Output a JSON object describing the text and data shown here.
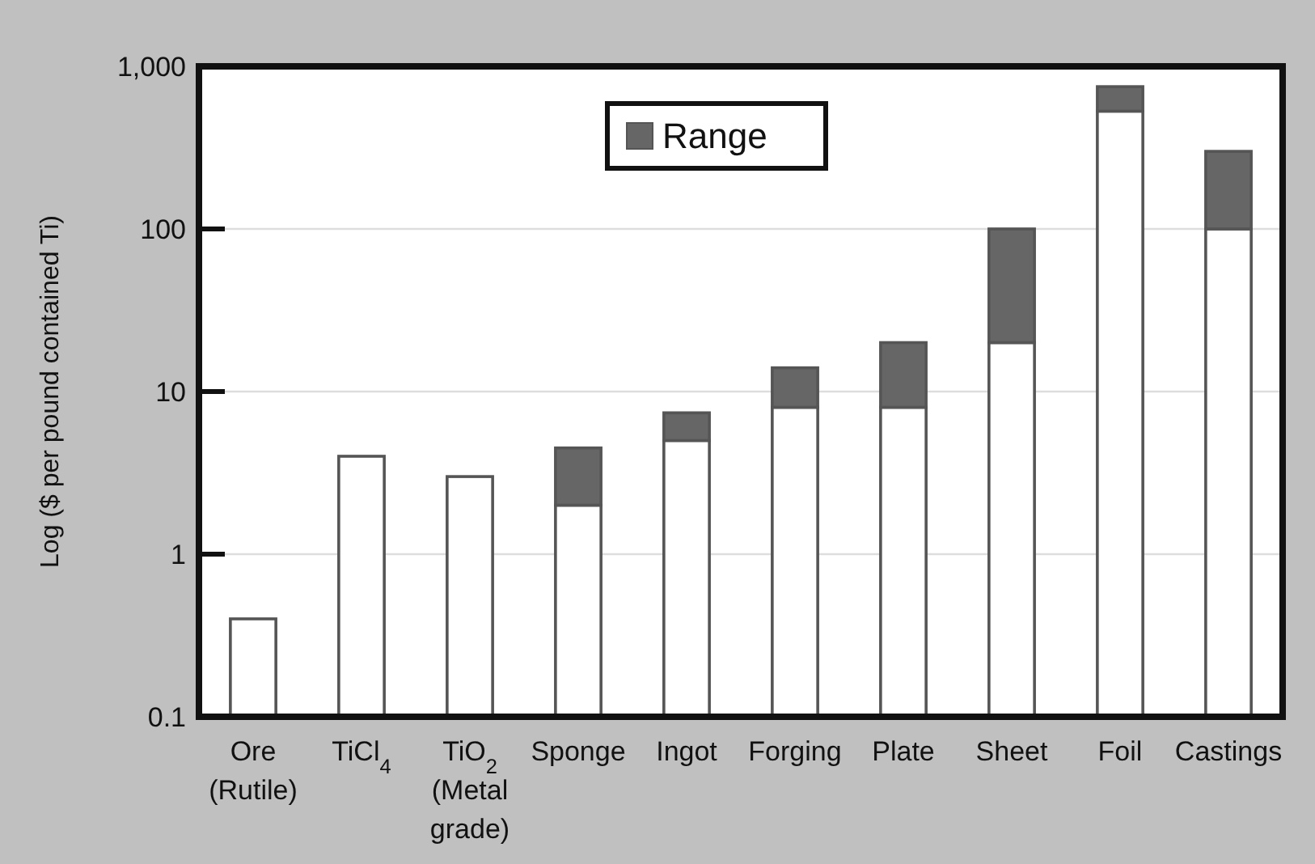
{
  "chart_data": {
    "type": "bar",
    "stacked": true,
    "log": true,
    "ylabel": "Log ($ per pound contained Ti)",
    "categories": [
      "Ore (Rutile)",
      "TiCl$_{4}$",
      "TiO$_{2}$ (Metal grade)",
      "Sponge",
      "Ingot",
      "Forging",
      "Plate",
      "Sheet",
      "Foil",
      "Castings"
    ],
    "series": [
      {
        "color": "#ffffff",
        "values": [
          0.4,
          4,
          3,
          2,
          5,
          8,
          8,
          20,
          530,
          100
        ]
      },
      {
        "name": "Range",
        "color": "#666666",
        "values": [
          null,
          null,
          null,
          2.5,
          2.4,
          6,
          12,
          80,
          220,
          200
        ]
      }
    ],
    "ylim": [
      0.1,
      1000
    ],
    "yticks": [
      0.1,
      1,
      10,
      100,
      {
        "value": 1000,
        "label": "1,000"
      }
    ],
    "grid": "y",
    "legend": "top"
  }
}
